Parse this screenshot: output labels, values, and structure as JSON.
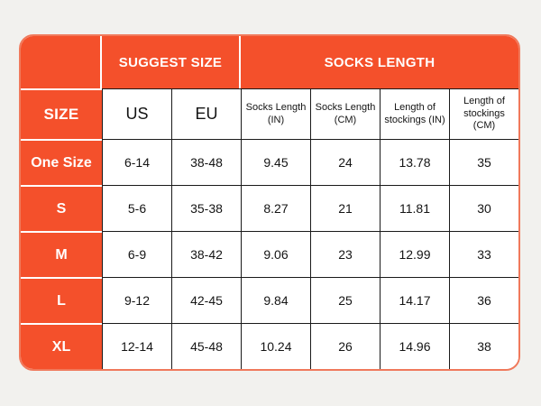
{
  "page": {
    "background_color": "#f2f1ee"
  },
  "table": {
    "accent_color": "#f4502b",
    "outer_border_color": "#f0795b",
    "header_groups": {
      "suggest_size": "SUGGEST SIZE",
      "socks_length": "SOCKS LENGTH"
    },
    "size_header": "SIZE",
    "columns": [
      "Socks Length (IN)",
      "Socks Length (CM)",
      "Length of stockings (IN)",
      "Length of stockings (CM)"
    ],
    "sub_columns": [
      "US",
      "EU"
    ],
    "rows": [
      {
        "label": "One Size",
        "cells": [
          "6-14",
          "38-48",
          "9.45",
          "24",
          "13.78",
          "35"
        ]
      },
      {
        "label": "S",
        "cells": [
          "5-6",
          "35-38",
          "8.27",
          "21",
          "11.81",
          "30"
        ]
      },
      {
        "label": "M",
        "cells": [
          "6-9",
          "38-42",
          "9.06",
          "23",
          "12.99",
          "33"
        ]
      },
      {
        "label": "L",
        "cells": [
          "9-12",
          "42-45",
          "9.84",
          "25",
          "14.17",
          "36"
        ]
      },
      {
        "label": "XL",
        "cells": [
          "12-14",
          "45-48",
          "10.24",
          "26",
          "14.96",
          "38"
        ]
      }
    ]
  },
  "chart_data": {
    "type": "table",
    "title": "",
    "column_groups": [
      "",
      "SUGGEST SIZE",
      "SOCKS LENGTH"
    ],
    "columns": [
      "SIZE",
      "US",
      "EU",
      "Socks Length (IN)",
      "Socks Length (CM)",
      "Length of stockings (IN)",
      "Length of stockings (CM)"
    ],
    "rows": [
      [
        "One Size",
        "6-14",
        "38-48",
        9.45,
        24,
        13.78,
        35
      ],
      [
        "S",
        "5-6",
        "35-38",
        8.27,
        21,
        11.81,
        30
      ],
      [
        "M",
        "6-9",
        "38-42",
        9.06,
        23,
        12.99,
        33
      ],
      [
        "L",
        "9-12",
        "42-45",
        9.84,
        25,
        14.17,
        36
      ],
      [
        "XL",
        "12-14",
        "45-48",
        10.24,
        26,
        14.96,
        38
      ]
    ]
  }
}
